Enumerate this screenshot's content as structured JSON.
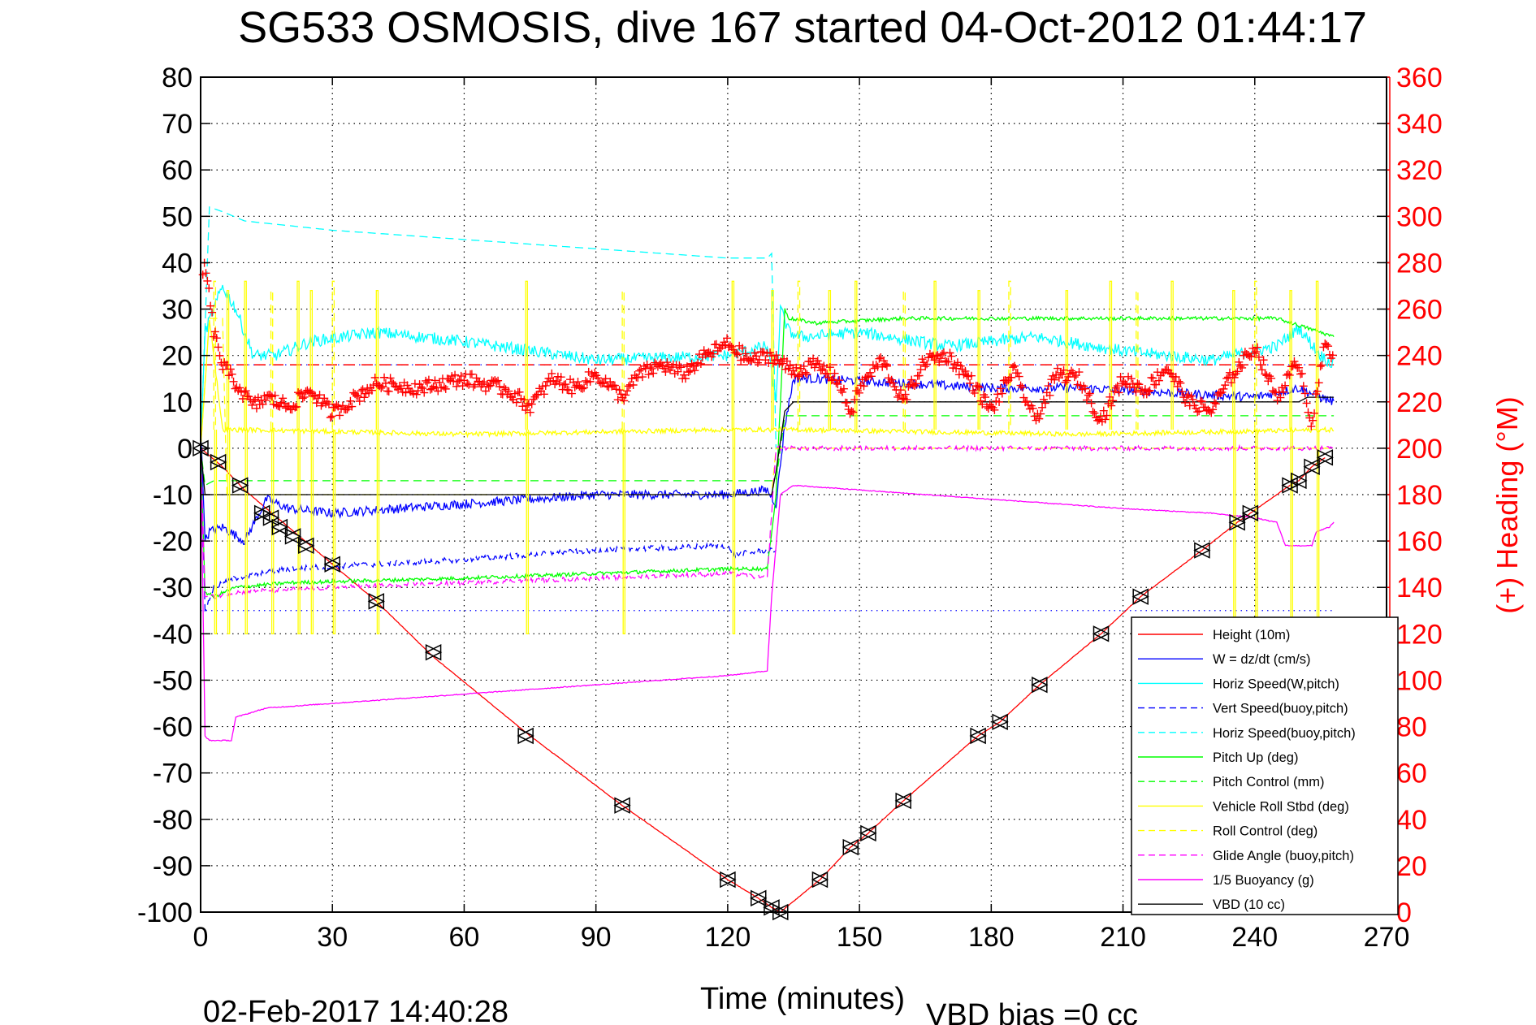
{
  "chart_data": {
    "type": "line",
    "title": "SG533 OSMOSIS, dive 167 started 04-Oct-2012 01:44:17",
    "xlabel": "Time (minutes)",
    "ylabel": "",
    "ylabel_right": "(+) Heading (°M)",
    "xlim": [
      0,
      270
    ],
    "ylim": [
      -100,
      80
    ],
    "ylim_right": [
      0,
      360
    ],
    "grid": true,
    "grid_style": "dotted",
    "x_ticks": [
      "0",
      "30",
      "60",
      "90",
      "120",
      "150",
      "180",
      "210",
      "240",
      "270"
    ],
    "y_ticks": [
      "80",
      "70",
      "60",
      "50",
      "40",
      "30",
      "20",
      "10",
      "0",
      "-10",
      "-20",
      "-30",
      "-40",
      "-50",
      "-60",
      "-70",
      "-80",
      "-90",
      "-100"
    ],
    "y_ticks_right": [
      "360",
      "340",
      "320",
      "300",
      "280",
      "260",
      "240",
      "220",
      "200",
      "180",
      "160",
      "140",
      "120",
      "100",
      "80",
      "60",
      "40",
      "20",
      "0"
    ],
    "legend_position": "lower-right",
    "footer_left": "02-Feb-2017 14:40:28",
    "footer_right": "VBD bias =0 cc",
    "series": [
      {
        "name": "Height (10m)",
        "color": "#ff0000",
        "style": "solid",
        "x": [
          0,
          5,
          10,
          20,
          30,
          40,
          53,
          75,
          96,
          120,
          127,
          130,
          132,
          141,
          148,
          152,
          160,
          177,
          182,
          191,
          205,
          214,
          228,
          236,
          239,
          248,
          250,
          253,
          256
        ],
        "y": [
          0,
          -4,
          -9,
          -17,
          -25,
          -33,
          -45,
          -62,
          -77,
          -93,
          -97,
          -99,
          -100,
          -93,
          -86,
          -83,
          -76,
          -62,
          -59,
          -51,
          -40,
          -32,
          -22,
          -16,
          -14,
          -8,
          -7,
          -4,
          -2
        ]
      },
      {
        "name": "W = dz/dt (cm/s)",
        "color": "#0000ff",
        "style": "solid",
        "x": [
          0,
          1,
          2,
          5,
          10,
          15,
          20,
          30,
          60,
          90,
          120,
          129,
          131,
          133,
          135,
          140,
          160,
          180,
          200,
          220,
          240,
          250,
          255,
          258
        ],
        "y": [
          5,
          -20,
          -18,
          -17,
          -20,
          -11,
          -13,
          -14,
          -12,
          -10,
          -10,
          -9,
          -12,
          5,
          15,
          15,
          14,
          13,
          13,
          12,
          11,
          13,
          11,
          10
        ]
      },
      {
        "name": "Horiz Speed(W,pitch)",
        "color": "#00ffff",
        "style": "solid",
        "x": [
          0,
          1,
          3,
          5,
          8,
          12,
          17,
          25,
          40,
          60,
          90,
          120,
          129,
          131,
          132,
          134,
          137,
          150,
          170,
          190,
          210,
          230,
          245,
          250,
          255,
          258
        ],
        "y": [
          0,
          25,
          30,
          35,
          30,
          20,
          20,
          23,
          25,
          23,
          19,
          20,
          22,
          10,
          30,
          25,
          24,
          25,
          22,
          24,
          21,
          19,
          22,
          26,
          20,
          18
        ]
      },
      {
        "name": "Vert Speed(buoy,pitch)",
        "color": "#0000ff",
        "style": "dashed",
        "x": [
          0,
          1,
          3,
          8,
          20,
          60,
          90,
          120,
          121,
          129,
          131
        ],
        "y": [
          0,
          -35,
          -30,
          -28,
          -26,
          -24,
          -22,
          -21,
          -23,
          -22,
          -22
        ]
      },
      {
        "name": "Horiz Speed(buoy,pitch)",
        "color": "#00ffff",
        "style": "dashed",
        "x": [
          0,
          2,
          5,
          10,
          30,
          60,
          90,
          120,
          129,
          130,
          131
        ],
        "y": [
          0,
          52,
          51,
          49,
          47,
          45,
          43,
          41,
          41,
          42,
          0
        ]
      },
      {
        "name": "Pitch Up (deg)",
        "color": "#00ff00",
        "style": "solid",
        "x": [
          0,
          1,
          3,
          8,
          20,
          60,
          90,
          120,
          129,
          131,
          133,
          134,
          140,
          160,
          180,
          200,
          230,
          245,
          255,
          258
        ],
        "y": [
          0,
          -31,
          -32,
          -30,
          -29,
          -28,
          -27,
          -26,
          -26,
          -10,
          30,
          28,
          27,
          28,
          28,
          28,
          28,
          28,
          25,
          24
        ]
      },
      {
        "name": "Pitch Control (mm)",
        "color": "#00ff00",
        "style": "dashed",
        "x": [
          0,
          1,
          3,
          130,
          131,
          133,
          258
        ],
        "y": [
          0,
          -8,
          -7,
          -7,
          -7,
          7,
          7
        ]
      },
      {
        "name": "Vehicle Roll Stbd (deg)",
        "color": "#ffff00",
        "style": "solid",
        "x": [
          0,
          2,
          5,
          10,
          60,
          120,
          130,
          135,
          200,
          258
        ],
        "y": [
          0,
          28,
          4,
          4,
          3,
          4,
          4,
          4,
          3,
          4
        ]
      },
      {
        "name": "Roll Control (deg)",
        "color": "#ffff00",
        "style": "dashed",
        "x": [
          0,
          2,
          5,
          6,
          130,
          131,
          258
        ],
        "y": [
          0,
          28,
          28,
          -10,
          -10,
          0,
          0
        ]
      },
      {
        "name": "Glide Angle (buoy,pitch)",
        "color": "#ff00ff",
        "style": "dashed",
        "x": [
          0,
          1,
          3,
          8,
          30,
          60,
          90,
          120,
          129,
          131,
          132,
          258
        ],
        "y": [
          0,
          -32,
          -32,
          -31,
          -30,
          -29,
          -28,
          -27,
          -28,
          0,
          0,
          0
        ]
      },
      {
        "name": "1/5 Buoyancy (g)",
        "color": "#ff00ff",
        "style": "solid",
        "x": [
          0,
          1,
          2,
          7,
          8,
          15,
          30,
          60,
          90,
          120,
          129,
          130,
          132,
          135,
          150,
          180,
          210,
          230,
          240,
          245,
          247,
          253,
          254,
          257,
          258
        ],
        "y": [
          0,
          -62,
          -63,
          -63,
          -58,
          -56,
          -55,
          -53,
          -51,
          -49,
          -48,
          -32,
          -10,
          -8,
          -9,
          -11,
          -13,
          -14,
          -15,
          -16,
          -21,
          -21,
          -18,
          -17,
          -16
        ]
      },
      {
        "name": "VBD (10 cc)",
        "color": "#000000",
        "style": "solid",
        "x": [
          0,
          1,
          2,
          130,
          131,
          133,
          135,
          200,
          250,
          252,
          258
        ],
        "y": [
          0,
          -10,
          -10,
          -10,
          -5,
          8,
          10,
          10,
          10,
          11,
          11
        ]
      }
    ],
    "heading": {
      "name": "Heading",
      "axis": "right",
      "color": "#ff0000",
      "marker": "+",
      "target_heading": 236,
      "x": [
        0,
        1,
        2,
        3,
        5,
        8,
        12,
        15,
        20,
        25,
        30,
        40,
        50,
        60,
        70,
        75,
        80,
        85,
        90,
        96,
        100,
        105,
        110,
        115,
        120,
        125,
        130,
        135,
        140,
        145,
        148,
        150,
        155,
        160,
        165,
        170,
        175,
        180,
        185,
        190,
        195,
        200,
        205,
        210,
        215,
        220,
        225,
        230,
        235,
        240,
        245,
        250,
        253,
        256,
        258
      ],
      "y": [
        270,
        280,
        265,
        250,
        236,
        228,
        218,
        222,
        218,
        225,
        215,
        228,
        226,
        230,
        225,
        218,
        230,
        226,
        232,
        222,
        232,
        236,
        232,
        240,
        245,
        238,
        240,
        233,
        236,
        230,
        215,
        226,
        238,
        220,
        238,
        240,
        230,
        216,
        234,
        212,
        232,
        230,
        212,
        230,
        225,
        235,
        220,
        216,
        232,
        244,
        222,
        238,
        210,
        245,
        240
      ]
    },
    "w_targets": [
      18,
      -35
    ],
    "dive_markers": {
      "x": [
        0,
        4,
        9,
        14,
        16,
        18,
        21,
        24,
        30,
        40,
        53,
        74,
        96,
        120,
        127,
        130,
        132,
        141,
        148,
        152,
        160,
        177,
        182,
        191,
        205,
        214,
        228,
        236,
        239,
        248,
        250,
        253,
        256
      ],
      "y": [
        0,
        -3,
        -8,
        -14,
        -15,
        -17,
        -19,
        -21,
        -25,
        -33,
        -44,
        -62,
        -77,
        -93,
        -97,
        -99,
        -100,
        -93,
        -86,
        -83,
        -76,
        -62,
        -59,
        -51,
        -40,
        -32,
        -22,
        -16,
        -14,
        -8,
        -7,
        -4,
        -2
      ]
    }
  }
}
